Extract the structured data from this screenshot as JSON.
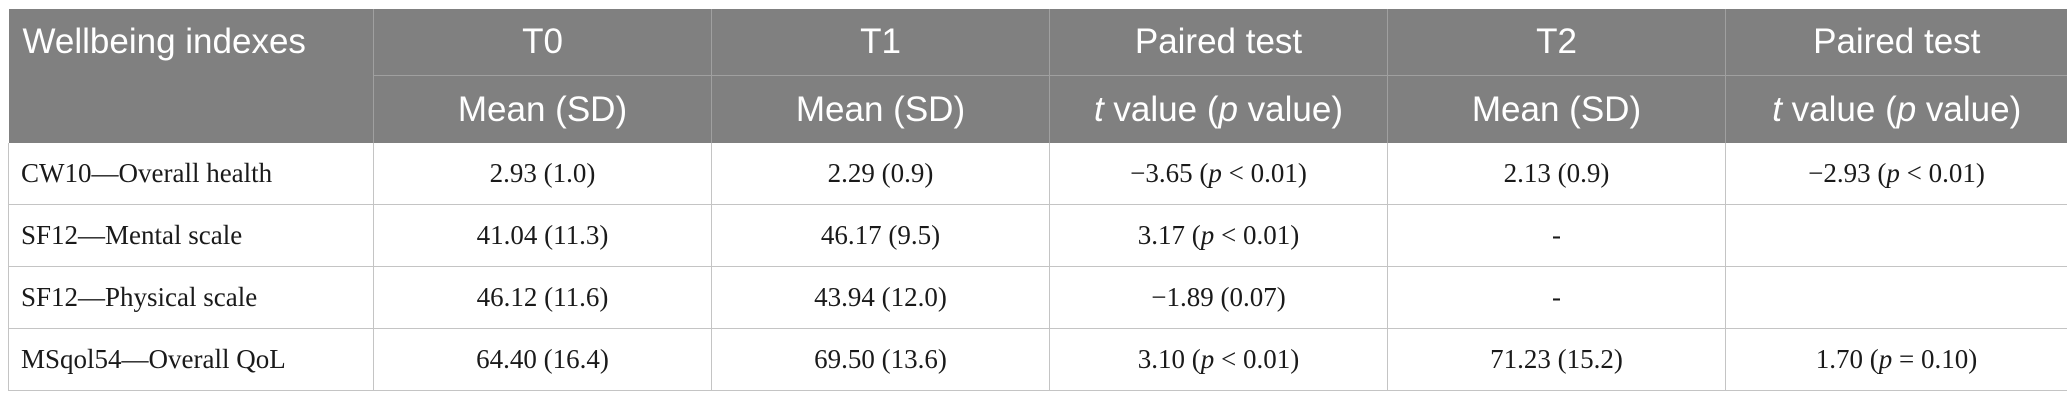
{
  "header": {
    "row1": {
      "wellbeing": "Wellbeing indexes",
      "t0": "T0",
      "t1": "T1",
      "paired1": "Paired test",
      "t2": "T2",
      "paired2": "Paired test"
    },
    "row2": {
      "t0": "Mean (SD)",
      "t1": "Mean (SD)",
      "paired1": {
        "t": "t",
        "mid": " value (",
        "p": "p",
        "end": " value)"
      },
      "t2": "Mean (SD)",
      "paired2": {
        "t": "t",
        "mid": " value (",
        "p": "p",
        "end": " value)"
      }
    }
  },
  "rows": [
    {
      "label": "CW10—Overall health",
      "t0": "2.93 (1.0)",
      "t1": "2.29 (0.9)",
      "paired1": {
        "pre": "−3.65 (",
        "p": "p",
        "post": " < 0.01)"
      },
      "t2": "2.13 (0.9)",
      "paired2": {
        "pre": "−2.93 (",
        "p": "p",
        "post": " < 0.01)"
      }
    },
    {
      "label": "SF12—Mental scale",
      "t0": "41.04 (11.3)",
      "t1": "46.17 (9.5)",
      "paired1": {
        "pre": "3.17 (",
        "p": "p",
        "post": " < 0.01)"
      },
      "t2": "-",
      "paired2": {
        "pre": "",
        "p": "",
        "post": ""
      }
    },
    {
      "label": "SF12—Physical scale",
      "t0": "46.12 (11.6)",
      "t1": "43.94 (12.0)",
      "paired1": {
        "pre": "−1.89 (0.07)",
        "p": "",
        "post": ""
      },
      "t2": "-",
      "paired2": {
        "pre": "",
        "p": "",
        "post": ""
      }
    },
    {
      "label": "MSqol54—Overall QoL",
      "t0": "64.40 (16.4)",
      "t1": "69.50 (13.6)",
      "paired1": {
        "pre": "3.10 (",
        "p": "p",
        "post": " < 0.01)"
      },
      "t2": "71.23 (15.2)",
      "paired2": {
        "pre": "1.70 (",
        "p": "p",
        "post": " = 0.10)"
      }
    }
  ]
}
